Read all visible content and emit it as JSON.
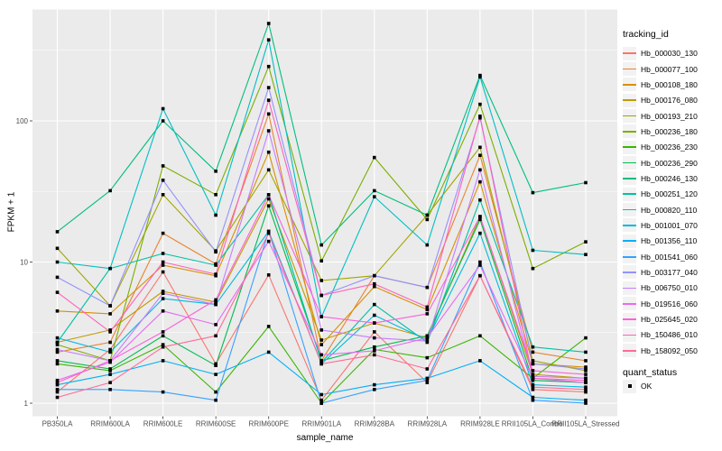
{
  "chart_data": {
    "type": "line",
    "title": "",
    "xlabel": "sample_name",
    "ylabel": "FPKM + 1",
    "y_scale": "log10",
    "y_ticks": [
      1,
      10,
      100
    ],
    "y_minor_ticks": [
      3.162,
      31.62,
      316.2
    ],
    "ylim": [
      0.82,
      660
    ],
    "panel_bg": "#EBEBEB",
    "grid_color": "#FFFFFF",
    "tick_label_color": "#4D4D4D",
    "point_shape": "filled-square",
    "point_color": "#000000",
    "legend_position": "right",
    "x_categories": [
      "PB350LA",
      "RRIM600LA",
      "RRIM600LE",
      "RRIM600SE",
      "RRIM600PE",
      "RRIM901LA",
      "RRIM928BA",
      "RRIM928LA",
      "RRIM928LE",
      "RRII105LA_Control",
      "RRII105LA_Stressed"
    ],
    "series": [
      {
        "name": "Hb_000030_130",
        "color": "#F8766D",
        "values": [
          1.2,
          2.4,
          8.5,
          1.9,
          8.1,
          1.05,
          3.2,
          1.4,
          8,
          1.25,
          1.2
        ]
      },
      {
        "name": "Hb_000077_100",
        "color": "#EA8331",
        "values": [
          2.3,
          2.7,
          16,
          9.7,
          112,
          2,
          8,
          6.6,
          57,
          2.3,
          2
        ]
      },
      {
        "name": "Hb_000108_180",
        "color": "#D89000",
        "values": [
          4.5,
          4.3,
          9.5,
          8,
          60,
          2.6,
          6.7,
          4.6,
          37,
          1.9,
          1.8
        ]
      },
      {
        "name": "Hb_000176_080",
        "color": "#C09B00",
        "values": [
          2.7,
          3.3,
          6.2,
          5.2,
          28,
          2.8,
          3.7,
          2.9,
          21,
          1.6,
          1.5
        ]
      },
      {
        "name": "Hb_000193_210",
        "color": "#A3A500",
        "values": [
          12.5,
          4.9,
          30,
          12,
          45,
          7.4,
          8,
          21.5,
          65,
          2,
          1.7
        ]
      },
      {
        "name": "Hb_000236_180",
        "color": "#7CAE00",
        "values": [
          2.6,
          2,
          48,
          30,
          243,
          10.2,
          55,
          20,
          131,
          9,
          13.9
        ]
      },
      {
        "name": "Hb_000236_230",
        "color": "#39B600",
        "values": [
          1.9,
          1.7,
          2.6,
          1.2,
          3.5,
          1,
          2.4,
          2.1,
          3,
          1.5,
          2.9
        ]
      },
      {
        "name": "Hb_000236_290",
        "color": "#00BB4E",
        "values": [
          2,
          1.75,
          3,
          1.85,
          25,
          2,
          2.5,
          3,
          20,
          1.45,
          1.4
        ]
      },
      {
        "name": "Hb_000246_130",
        "color": "#00BF7D",
        "values": [
          16.4,
          32,
          100,
          44,
          490,
          13.2,
          32,
          21.5,
          210,
          31,
          36.5
        ]
      },
      {
        "name": "Hb_000251_120",
        "color": "#00C1A3",
        "values": [
          2.7,
          9,
          11.5,
          9.5,
          30,
          1.95,
          5,
          2.7,
          27.5,
          2.5,
          2.3
        ]
      },
      {
        "name": "Hb_000820_110",
        "color": "#00BFC4",
        "values": [
          10,
          9,
          122,
          21.5,
          375,
          4.1,
          29,
          13.2,
          205,
          12.1,
          11.3
        ]
      },
      {
        "name": "Hb_001001_070",
        "color": "#00BAE0",
        "values": [
          2.9,
          2.3,
          5.5,
          5,
          16.5,
          1.9,
          4.2,
          2.8,
          16,
          1.35,
          1.3
        ]
      },
      {
        "name": "Hb_001356_110",
        "color": "#00B0F6",
        "values": [
          1.35,
          1.6,
          2,
          1.6,
          2.3,
          1.15,
          1.35,
          1.5,
          2,
          1.1,
          1.05
        ]
      },
      {
        "name": "Hb_001541_060",
        "color": "#35A2FF",
        "values": [
          1.25,
          1.25,
          1.2,
          1.05,
          16.5,
          1,
          1.25,
          1.45,
          10,
          1.05,
          1
        ]
      },
      {
        "name": "Hb_003177_040",
        "color": "#9590FF",
        "values": [
          7.8,
          4.9,
          38,
          11.8,
          172,
          5.8,
          8,
          6.6,
          105,
          1.9,
          1.75
        ]
      },
      {
        "name": "Hb_006750_010",
        "color": "#C77CFF",
        "values": [
          2.4,
          2,
          6,
          5,
          85,
          3.3,
          2.9,
          2.75,
          45,
          1.55,
          1.5
        ]
      },
      {
        "name": "Hb_019516_060",
        "color": "#E76BF3",
        "values": [
          1.45,
          1.95,
          4.5,
          3.6,
          14,
          2.2,
          2.35,
          2.9,
          9.5,
          1.5,
          1.4
        ]
      },
      {
        "name": "Hb_025645_020",
        "color": "#FA62DB",
        "values": [
          1.4,
          2,
          3.2,
          5.4,
          30,
          4.1,
          3.7,
          4.3,
          21,
          1.7,
          1.6
        ]
      },
      {
        "name": "Hb_150486_010",
        "color": "#FF62BC",
        "values": [
          6.1,
          3.2,
          10,
          8.2,
          140,
          5.8,
          7,
          4.8,
          108,
          1.5,
          1.45
        ]
      },
      {
        "name": "Hb_158092_050",
        "color": "#FF6A98",
        "values": [
          1.1,
          1.4,
          2.5,
          3,
          16,
          1.9,
          2.2,
          1.75,
          8,
          1.3,
          1.25
        ]
      }
    ]
  },
  "legend": {
    "title": "tracking_id"
  },
  "legend2": {
    "title": "quant_status",
    "items": [
      {
        "label": "OK"
      }
    ]
  }
}
